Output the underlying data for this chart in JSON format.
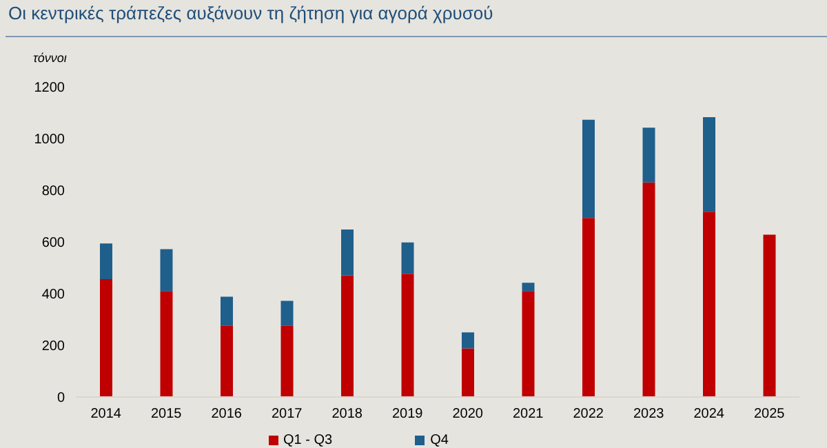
{
  "chart_data": {
    "type": "bar",
    "title": "Οι κεντρικές τράπεζες αυξάνουν τη ζήτηση  για αγορά χρυσού",
    "ylabel": "τόννοι",
    "categories": [
      "2014",
      "2015",
      "2016",
      "2017",
      "2018",
      "2019",
      "2020",
      "2021",
      "2022",
      "2023",
      "2024",
      "2025"
    ],
    "series": [
      {
        "name": "Q1 - Q3",
        "color": "#c00000",
        "values": [
          456,
          410,
          275,
          275,
          471,
          477,
          188,
          410,
          693,
          830,
          717,
          628
        ]
      },
      {
        "name": "Q4",
        "color": "#1f5f8b",
        "values": [
          138,
          162,
          113,
          97,
          177,
          121,
          62,
          32,
          380,
          212,
          366,
          null
        ]
      }
    ],
    "stacked": true,
    "ylim": [
      0,
      1200
    ],
    "yticks": [
      0,
      200,
      400,
      600,
      800,
      1000,
      1200
    ],
    "grid": false,
    "legend": "bottom"
  }
}
